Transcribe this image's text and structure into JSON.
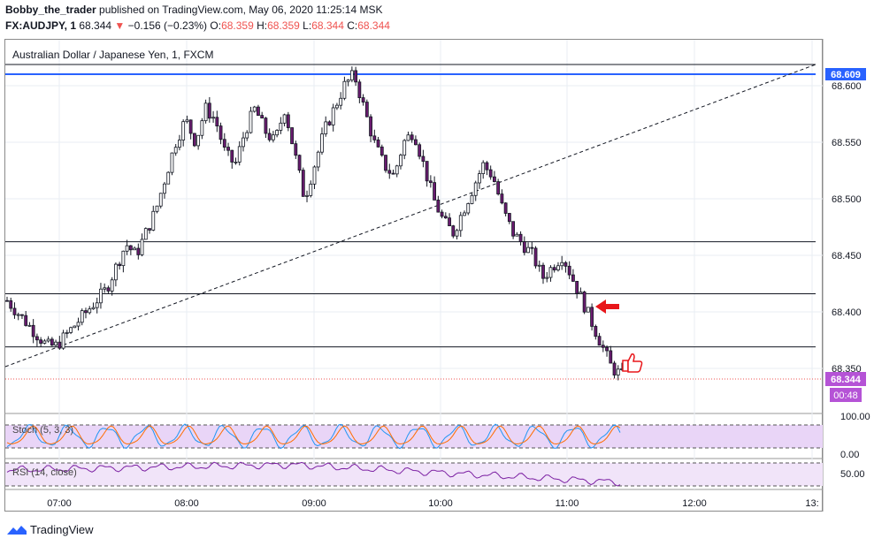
{
  "header": {
    "author": "Bobby_the_trader",
    "published_text": " published on TradingView.com, May 06, 2020 11:25:14 MSK",
    "symbol": "FX:AUDJPY, 1",
    "last_price": "68.344",
    "change_arrow": "▼",
    "change": "−0.156 (−0.23%)",
    "o_label": "O:",
    "o_value": "68.359",
    "h_label": "H:",
    "h_value": "68.359",
    "l_label": "L:",
    "l_value": "68.344",
    "c_label": "C:",
    "c_value": "68.344"
  },
  "chart": {
    "title": "Australian Dollar / Japanese Yen, 1, FXCM",
    "price_ticks": [
      "68.600",
      "68.550",
      "68.500",
      "68.450",
      "68.400",
      "68.350"
    ],
    "blue_line_label": "68.609",
    "current_price_label": "68.344",
    "countdown_label": "00:48",
    "time_ticks": [
      "07:00",
      "08:00",
      "09:00",
      "10:00",
      "11:00",
      "12:00",
      "13:"
    ],
    "colors": {
      "blue_line": "#2962ff",
      "price_tag": "#b553d6",
      "current_line": "#ef5350",
      "arrow": "#e8161a"
    }
  },
  "stoch": {
    "label": "Stoch (5, 3, 3)",
    "ticks": [
      "100.00",
      "0.00"
    ]
  },
  "rsi": {
    "label": "RSI (14, close)",
    "ticks": [
      "50.00"
    ]
  },
  "footer": {
    "brand": "TradingView"
  },
  "chart_data": {
    "type": "line",
    "title": "Australian Dollar / Japanese Yen, 1, FXCM",
    "x_ticks": [
      "07:00",
      "08:00",
      "09:00",
      "10:00",
      "11:00",
      "12:00",
      "13:"
    ],
    "y_ticks": [
      68.6,
      68.55,
      68.5,
      68.45,
      68.4,
      68.35
    ],
    "ylim": [
      68.315,
      68.63
    ],
    "horizontal_levels": [
      68.609,
      68.462,
      68.416,
      68.369
    ],
    "series": [
      {
        "values": [
          68.41,
          68.4,
          68.39,
          68.38,
          68.37,
          68.37,
          68.38,
          68.39,
          68.4,
          68.41,
          68.42,
          68.44,
          68.46,
          68.45,
          68.47,
          68.49,
          68.52,
          68.55,
          68.57,
          68.55,
          68.58,
          68.57,
          68.54,
          68.53,
          68.56,
          68.58,
          68.56,
          68.55,
          68.58,
          68.54,
          68.5,
          68.53,
          68.56,
          68.58,
          68.6,
          68.61,
          68.58,
          68.55,
          68.53,
          68.52,
          68.55,
          68.56,
          68.53,
          68.5,
          68.48,
          68.47,
          68.49,
          68.51,
          68.53,
          68.52,
          68.49,
          68.47,
          68.46,
          68.45,
          68.43,
          68.44,
          68.45,
          68.43,
          68.41,
          68.39,
          68.37,
          68.35,
          68.344
        ]
      }
    ]
  }
}
